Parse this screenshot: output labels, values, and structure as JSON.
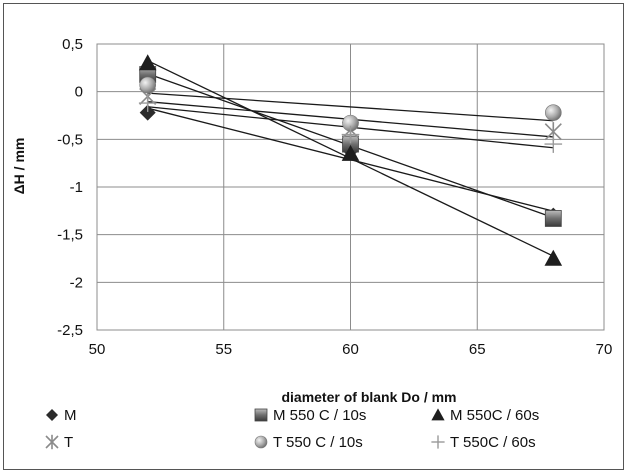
{
  "chart_data": {
    "type": "scatter",
    "title": "",
    "xlabel": "diameter of blank Do / mm",
    "ylabel": "ΔH / mm",
    "xlim": [
      50,
      70
    ],
    "ylim": [
      -2.5,
      0.5
    ],
    "x_ticks": [
      "50",
      "55",
      "60",
      "65",
      "70"
    ],
    "y_ticks": [
      "0,5",
      "0",
      "-0,5",
      "-1",
      "-1,5",
      "-2",
      "-2,5"
    ],
    "grid": true,
    "legend_position": "bottom",
    "trendlines": "linear",
    "series": [
      {
        "name": "M",
        "marker": "diamond",
        "color": "#2b2b2b",
        "x": [
          52,
          60,
          68
        ],
        "y": [
          -0.22,
          -0.62,
          -1.3
        ]
      },
      {
        "name": "M 550 C / 10s",
        "marker": "square-shaded",
        "color": "#6a6a6a",
        "x": [
          52,
          60,
          68
        ],
        "y": [
          0.18,
          -0.55,
          -1.33
        ]
      },
      {
        "name": "M 550C  / 60s",
        "marker": "triangle",
        "color": "#1e1e1e",
        "x": [
          52,
          60,
          68
        ],
        "y": [
          0.3,
          -0.65,
          -1.75
        ]
      },
      {
        "name": "T",
        "marker": "asterisk",
        "color": "#8a8a8a",
        "x": [
          52,
          60,
          68
        ],
        "y": [
          -0.05,
          -0.4,
          -0.42
        ]
      },
      {
        "name": "T 550 C / 10s",
        "marker": "circle-shaded",
        "color": "#9a9a9a",
        "x": [
          52,
          60,
          68
        ],
        "y": [
          0.07,
          -0.33,
          -0.22
        ]
      },
      {
        "name": "T 550C / 60s",
        "marker": "plus",
        "color": "#9a9a9a",
        "x": [
          52,
          60,
          68
        ],
        "y": [
          -0.12,
          -0.45,
          -0.55
        ]
      }
    ]
  }
}
